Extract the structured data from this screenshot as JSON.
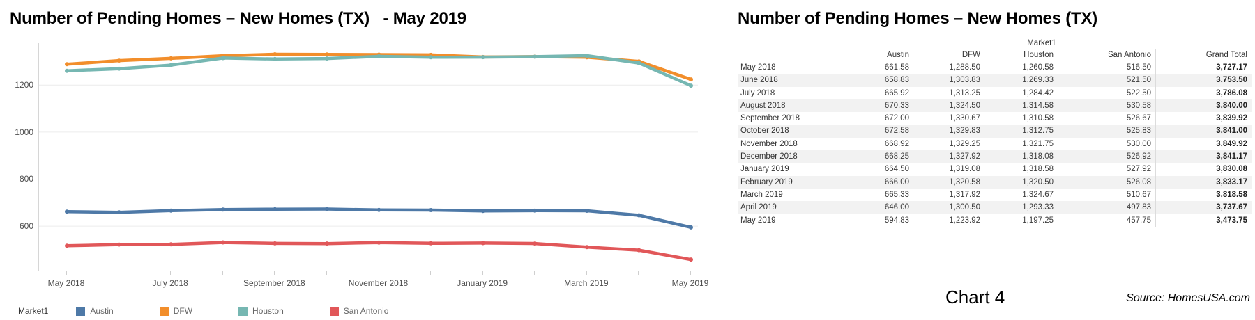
{
  "footer": {
    "chart_label": "Chart 4",
    "source": "Source: HomesUSA.com"
  },
  "chart_data": [
    {
      "type": "line",
      "title": "Number of Pending Homes – New Homes (TX)   - May 2019",
      "x": [
        "May 2018",
        "June 2018",
        "July 2018",
        "August 2018",
        "September 2018",
        "October 2018",
        "November 2018",
        "December 2018",
        "January 2019",
        "February 2019",
        "March 2019",
        "April 2019",
        "May 2019"
      ],
      "x_axis_tick_labels": [
        "May 2018",
        "July 2018",
        "September 2018",
        "November 2018",
        "January 2019",
        "March 2019",
        "May 2019"
      ],
      "y_ticks": [
        600,
        800,
        1000,
        1200
      ],
      "ylim": [
        408,
        1378
      ],
      "grid": true,
      "legend_position": "bottom",
      "legend_title": "Market1",
      "series": [
        {
          "name": "Austin",
          "color": "#4e79a7",
          "values": [
            661.58,
            658.83,
            665.92,
            670.33,
            672.0,
            672.58,
            668.92,
            668.25,
            664.5,
            666.0,
            665.33,
            646.0,
            594.83
          ]
        },
        {
          "name": "DFW",
          "color": "#f28e2b",
          "values": [
            1288.5,
            1303.83,
            1313.25,
            1324.5,
            1330.67,
            1329.83,
            1329.25,
            1327.92,
            1319.08,
            1320.58,
            1317.92,
            1300.5,
            1223.92
          ]
        },
        {
          "name": "Houston",
          "color": "#76b7b2",
          "values": [
            1260.58,
            1269.33,
            1284.42,
            1314.58,
            1310.58,
            1312.75,
            1321.75,
            1318.08,
            1318.58,
            1320.5,
            1324.67,
            1293.33,
            1197.25
          ]
        },
        {
          "name": "San Antonio",
          "color": "#e15759",
          "values": [
            516.5,
            521.5,
            522.5,
            530.58,
            526.67,
            525.83,
            530.0,
            526.92,
            527.92,
            526.08,
            510.67,
            497.83,
            457.75
          ]
        }
      ]
    },
    {
      "type": "table",
      "title": "Number of Pending Homes – New Homes (TX)",
      "group_header": "Market1",
      "columns": [
        "",
        "Austin",
        "DFW",
        "Houston",
        "San Antonio",
        "Grand Total"
      ],
      "rows": [
        [
          "May 2018",
          "661.58",
          "1,288.50",
          "1,260.58",
          "516.50",
          "3,727.17"
        ],
        [
          "June 2018",
          "658.83",
          "1,303.83",
          "1,269.33",
          "521.50",
          "3,753.50"
        ],
        [
          "July 2018",
          "665.92",
          "1,313.25",
          "1,284.42",
          "522.50",
          "3,786.08"
        ],
        [
          "August 2018",
          "670.33",
          "1,324.50",
          "1,314.58",
          "530.58",
          "3,840.00"
        ],
        [
          "September 2018",
          "672.00",
          "1,330.67",
          "1,310.58",
          "526.67",
          "3,839.92"
        ],
        [
          "October 2018",
          "672.58",
          "1,329.83",
          "1,312.75",
          "525.83",
          "3,841.00"
        ],
        [
          "November 2018",
          "668.92",
          "1,329.25",
          "1,321.75",
          "530.00",
          "3,849.92"
        ],
        [
          "December 2018",
          "668.25",
          "1,327.92",
          "1,318.08",
          "526.92",
          "3,841.17"
        ],
        [
          "January 2019",
          "664.50",
          "1,319.08",
          "1,318.58",
          "527.92",
          "3,830.08"
        ],
        [
          "February 2019",
          "666.00",
          "1,320.58",
          "1,320.50",
          "526.08",
          "3,833.17"
        ],
        [
          "March 2019",
          "665.33",
          "1,317.92",
          "1,324.67",
          "510.67",
          "3,818.58"
        ],
        [
          "April 2019",
          "646.00",
          "1,300.50",
          "1,293.33",
          "497.83",
          "3,737.67"
        ],
        [
          "May 2019",
          "594.83",
          "1,223.92",
          "1,197.25",
          "457.75",
          "3,473.75"
        ]
      ]
    }
  ]
}
